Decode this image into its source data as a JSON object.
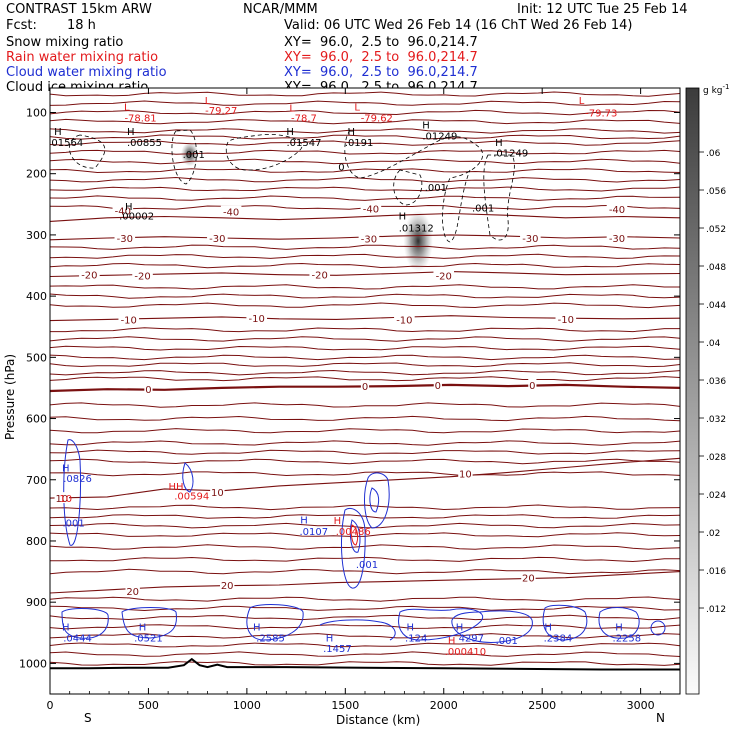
{
  "header": {
    "title": "CONTRAST 15km ARW",
    "center": "NCAR/MMM",
    "init": "Init: 12 UTC Tue 25 Feb 14",
    "fcst_label": "Fcst:",
    "fcst_value": "18 h",
    "valid": "Valid: 06 UTC Wed 26 Feb 14 (16 ChT Wed 26 Feb 14)"
  },
  "fields": [
    {
      "name": "Snow mixing ratio",
      "xy": "XY=  96.0,  2.5 to  96.0,214.7",
      "color": "#000000"
    },
    {
      "name": "Rain water mixing ratio",
      "xy": "XY=  96.0,  2.5 to  96.0,214.7",
      "color": "#e31a1c"
    },
    {
      "name": "Cloud water mixing ratio",
      "xy": "XY=  96.0,  2.5 to  96.0,214.7",
      "color": "#1f2fd2"
    },
    {
      "name": "Cloud ice mixing ratio",
      "xy": "XY=  96.0,  2.5 to  96.0,214.7",
      "color": "#000000"
    }
  ],
  "chart_data": {
    "type": "contour",
    "xlabel": "Distance (km)",
    "ylabel": "Pressure (hPa)",
    "xlim": [
      0,
      3200
    ],
    "ylim": [
      1050,
      60
    ],
    "x_ticks": [
      0,
      500,
      1000,
      1500,
      2000,
      2500,
      3000
    ],
    "y_ticks": [
      100,
      200,
      300,
      400,
      500,
      600,
      700,
      800,
      900,
      1000
    ],
    "end_labels": {
      "left": "S",
      "right": "N"
    },
    "temperature_contours": [
      {
        "label": "-40",
        "p": [
          278,
          272,
          270,
          272,
          275,
          272,
          268,
          265,
          268,
          272,
          270,
          272
        ]
      },
      {
        "label": "-30",
        "p": [
          308,
          305,
          303,
          305,
          307,
          305,
          302,
          300,
          302,
          305,
          303,
          305
        ]
      },
      {
        "label": "-20",
        "p": [
          368,
          366,
          364,
          362,
          365,
          366,
          363,
          360,
          362,
          365,
          364,
          363
        ]
      },
      {
        "label": "-10",
        "p": [
          440,
          438,
          436,
          434,
          437,
          438,
          435,
          432,
          435,
          436,
          437,
          436
        ]
      },
      {
        "label": "0",
        "p": [
          555,
          552,
          553,
          550,
          548,
          548,
          547,
          545,
          547,
          545,
          548,
          550
        ]
      },
      {
        "label": "10",
        "p": [
          730,
          728,
          715,
          718,
          710,
          705,
          700,
          695,
          688,
          680,
          672,
          665
        ]
      },
      {
        "label": "20",
        "p": [
          885,
          880,
          875,
          873,
          872,
          868,
          866,
          864,
          862,
          860,
          855,
          850
        ]
      }
    ],
    "contour_labels": [
      {
        "text": "-40",
        "x": 370,
        "p": 260
      },
      {
        "text": "-40",
        "x": 920,
        "p": 262
      },
      {
        "text": "-40",
        "x": 1630,
        "p": 257
      },
      {
        "text": "-40",
        "x": 2880,
        "p": 258
      },
      {
        "text": "-30",
        "x": 380,
        "p": 305
      },
      {
        "text": "-30",
        "x": 850,
        "p": 305
      },
      {
        "text": "-30",
        "x": 1620,
        "p": 306
      },
      {
        "text": "-30",
        "x": 2440,
        "p": 305
      },
      {
        "text": "-30",
        "x": 2880,
        "p": 305
      },
      {
        "text": "-20",
        "x": 200,
        "p": 365
      },
      {
        "text": "-20",
        "x": 470,
        "p": 366
      },
      {
        "text": "-20",
        "x": 1370,
        "p": 365
      },
      {
        "text": "-20",
        "x": 2000,
        "p": 366
      },
      {
        "text": "-10",
        "x": 400,
        "p": 438
      },
      {
        "text": "-10",
        "x": 1050,
        "p": 436
      },
      {
        "text": "-10",
        "x": 1800,
        "p": 438
      },
      {
        "text": "-10",
        "x": 2620,
        "p": 437
      },
      {
        "text": "0",
        "x": 500,
        "p": 552
      },
      {
        "text": "0",
        "x": 1600,
        "p": 547
      },
      {
        "text": "0",
        "x": 1970,
        "p": 545
      },
      {
        "text": "0",
        "x": 2450,
        "p": 545
      },
      {
        "text": "10",
        "x": 60,
        "p": 730
      },
      {
        "text": "10",
        "x": 850,
        "p": 720
      },
      {
        "text": "10",
        "x": 2110,
        "p": 690
      },
      {
        "text": "20",
        "x": 420,
        "p": 882
      },
      {
        "text": "20",
        "x": 900,
        "p": 872
      },
      {
        "text": "20",
        "x": 2430,
        "p": 860
      }
    ],
    "temperature_lines": {
      "color": "#7a1010",
      "pressures": [
        70,
        85,
        100,
        115,
        130,
        140,
        150,
        165,
        180,
        195,
        210,
        225,
        240,
        255,
        320,
        335,
        350,
        385,
        400,
        415,
        455,
        470,
        485,
        500,
        512,
        525,
        535,
        578,
        600,
        620,
        640,
        655,
        670,
        690,
        745,
        760,
        775,
        790,
        810,
        830,
        850,
        895,
        910,
        925,
        940,
        955,
        970,
        985,
        1000
      ]
    },
    "extrema_labels": [
      {
        "text": "L",
        "x": 390,
        "p": 90,
        "color": "#e31a1c"
      },
      {
        "text": "-78.81",
        "x": 460,
        "p": 108,
        "color": "#e31a1c"
      },
      {
        "text": "L",
        "x": 800,
        "p": 80,
        "color": "#e31a1c"
      },
      {
        "text": "-79.27",
        "x": 870,
        "p": 96,
        "color": "#e31a1c"
      },
      {
        "text": "L",
        "x": 1230,
        "p": 92,
        "color": "#e31a1c"
      },
      {
        "text": "-78.7",
        "x": 1290,
        "p": 108,
        "color": "#e31a1c"
      },
      {
        "text": "L",
        "x": 1560,
        "p": 90,
        "color": "#e31a1c"
      },
      {
        "text": "-79.62",
        "x": 1660,
        "p": 108,
        "color": "#e31a1c"
      },
      {
        "text": "L",
        "x": 2700,
        "p": 80,
        "color": "#e31a1c"
      },
      {
        "text": "-79.73",
        "x": 2800,
        "p": 100,
        "color": "#e31a1c"
      },
      {
        "text": "H",
        "x": 40,
        "p": 130,
        "color": "#000000"
      },
      {
        "text": ".01564",
        "x": 80,
        "p": 148,
        "color": "#000000"
      },
      {
        "text": "H",
        "x": 410,
        "p": 130,
        "color": "#000000"
      },
      {
        "text": ".00855",
        "x": 480,
        "p": 148,
        "color": "#000000"
      },
      {
        "text": "H",
        "x": 1220,
        "p": 130,
        "color": "#000000"
      },
      {
        "text": ".01547",
        "x": 1290,
        "p": 148,
        "color": "#000000"
      },
      {
        "text": "H",
        "x": 1530,
        "p": 130,
        "color": "#000000"
      },
      {
        "text": ".0191",
        "x": 1570,
        "p": 148,
        "color": "#000000"
      },
      {
        "text": "H",
        "x": 1910,
        "p": 120,
        "color": "#000000"
      },
      {
        "text": ".01249",
        "x": 1980,
        "p": 138,
        "color": "#000000"
      },
      {
        "text": "H",
        "x": 2280,
        "p": 148,
        "color": "#000000"
      },
      {
        "text": ".01249",
        "x": 2340,
        "p": 165,
        "color": "#000000"
      },
      {
        "text": ".001",
        "x": 730,
        "p": 168,
        "color": "#000000"
      },
      {
        "text": "0",
        "x": 1480,
        "p": 188,
        "color": "#000000"
      },
      {
        "text": ".001",
        "x": 1960,
        "p": 222,
        "color": "#000000"
      },
      {
        "text": ".001",
        "x": 2200,
        "p": 255,
        "color": "#000000"
      },
      {
        "text": "H",
        "x": 400,
        "p": 253,
        "color": "#000000"
      },
      {
        "text": ".00002",
        "x": 440,
        "p": 268,
        "color": "#000000"
      },
      {
        "text": "H",
        "x": 1790,
        "p": 268,
        "color": "#000000"
      },
      {
        "text": ".01312",
        "x": 1860,
        "p": 288,
        "color": "#000000"
      },
      {
        "text": "H",
        "x": 80,
        "p": 680,
        "color": "#1f2fd2"
      },
      {
        "text": ".0826",
        "x": 140,
        "p": 697,
        "color": "#1f2fd2"
      },
      {
        "text": "10",
        "x": 80,
        "p": 730,
        "color": "#e31a1c"
      },
      {
        "text": "HH",
        "x": 640,
        "p": 710,
        "color": "#e31a1c"
      },
      {
        "text": ".00594",
        "x": 720,
        "p": 726,
        "color": "#e31a1c"
      },
      {
        "text": ".001",
        "x": 120,
        "p": 770,
        "color": "#1f2fd2"
      },
      {
        "text": "H",
        "x": 1290,
        "p": 765,
        "color": "#1f2fd2"
      },
      {
        "text": ".0107",
        "x": 1340,
        "p": 784,
        "color": "#1f2fd2"
      },
      {
        "text": "H",
        "x": 1460,
        "p": 766,
        "color": "#e31a1c"
      },
      {
        "text": ".00486",
        "x": 1540,
        "p": 784,
        "color": "#e31a1c"
      },
      {
        "text": ".001",
        "x": 1610,
        "p": 838,
        "color": "#1f2fd2"
      },
      {
        "text": "H",
        "x": 80,
        "p": 940,
        "color": "#1f2fd2"
      },
      {
        "text": ".0444",
        "x": 140,
        "p": 958,
        "color": "#1f2fd2"
      },
      {
        "text": "H",
        "x": 470,
        "p": 940,
        "color": "#1f2fd2"
      },
      {
        "text": ".0521",
        "x": 500,
        "p": 958,
        "color": "#1f2fd2"
      },
      {
        "text": "H",
        "x": 1050,
        "p": 940,
        "color": "#1f2fd2"
      },
      {
        "text": ".2585",
        "x": 1120,
        "p": 958,
        "color": "#1f2fd2"
      },
      {
        "text": "H",
        "x": 1420,
        "p": 958,
        "color": "#1f2fd2"
      },
      {
        "text": ".1457",
        "x": 1460,
        "p": 975,
        "color": "#1f2fd2"
      },
      {
        "text": "H",
        "x": 1830,
        "p": 940,
        "color": "#1f2fd2"
      },
      {
        "text": ".124",
        "x": 1860,
        "p": 958,
        "color": "#1f2fd2"
      },
      {
        "text": "H",
        "x": 2080,
        "p": 940,
        "color": "#1f2fd2"
      },
      {
        "text": "4297",
        "x": 2140,
        "p": 958,
        "color": "#1f2fd2"
      },
      {
        "text": ".001",
        "x": 2320,
        "p": 962,
        "color": "#1f2fd2"
      },
      {
        "text": "H",
        "x": 2040,
        "p": 962,
        "color": "#e31a1c"
      },
      {
        "text": ".000410",
        "x": 2110,
        "p": 980,
        "color": "#e31a1c"
      },
      {
        "text": "H",
        "x": 2530,
        "p": 940,
        "color": "#1f2fd2"
      },
      {
        "text": ".2384",
        "x": 2580,
        "p": 958,
        "color": "#1f2fd2"
      },
      {
        "text": "H",
        "x": 2890,
        "p": 940,
        "color": "#1f2fd2"
      },
      {
        "text": ".2258",
        "x": 2930,
        "p": 958,
        "color": "#1f2fd2"
      }
    ],
    "terrain": {
      "x": [
        0,
        200,
        400,
        600,
        680,
        720,
        760,
        800,
        850,
        900,
        1200,
        1600,
        2000,
        2400,
        2800,
        3200
      ],
      "p": [
        1008,
        1008,
        1007,
        1007,
        1003,
        993,
        1003,
        1006,
        1002,
        1006,
        1006,
        1007,
        1008,
        1009,
        1010,
        1010
      ]
    },
    "shading_blobs": [
      {
        "x": 1870,
        "p": 310,
        "rx": 75,
        "rp": 50,
        "value": 0.013
      },
      {
        "x": 710,
        "p": 168,
        "rx": 45,
        "rp": 20,
        "value": 0.008
      }
    ],
    "colorbar": {
      "unit": "g kg",
      "unit_exp": "-1",
      "ticks": [
        ".06",
        ".056",
        ".052",
        ".048",
        ".044",
        ".04",
        ".036",
        ".032",
        ".028",
        ".024",
        ".02",
        ".016",
        ".012"
      ],
      "top_color": "#3c3c3c",
      "bottom_color": "#fbfbfb"
    }
  }
}
